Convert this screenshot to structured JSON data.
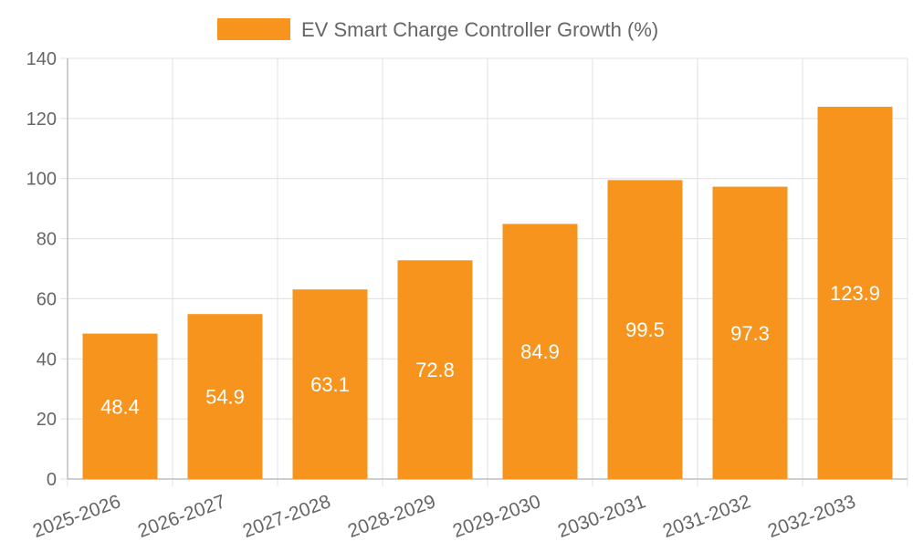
{
  "chart_data": {
    "type": "bar",
    "title": "",
    "legend": {
      "label": "EV Smart Charge Controller Growth (%)",
      "color": "#f7941d",
      "position": "top"
    },
    "categories": [
      "2025-2026",
      "2026-2027",
      "2027-2028",
      "2028-2029",
      "2029-2030",
      "2030-2031",
      "2031-2032",
      "2032-2033"
    ],
    "series": [
      {
        "name": "EV Smart Charge Controller Growth (%)",
        "values": [
          48.4,
          54.9,
          63.1,
          72.8,
          84.9,
          99.5,
          97.3,
          123.9
        ],
        "color": "#f7941d"
      }
    ],
    "data_labels": [
      "48.4",
      "54.9",
      "63.1",
      "72.8",
      "84.9",
      "99.5",
      "97.3",
      "123.9"
    ],
    "xlabel": "",
    "ylabel": "",
    "ylim": [
      0,
      140
    ],
    "yticks": [
      "0",
      "20",
      "40",
      "60",
      "80",
      "100",
      "120",
      "140"
    ],
    "grid": true,
    "colors": {
      "bar": "#f7941d",
      "grid": "#e0e0e0",
      "axis": "#bdbdbd",
      "tick_text": "#666666",
      "label_text": "#ffffff"
    }
  }
}
